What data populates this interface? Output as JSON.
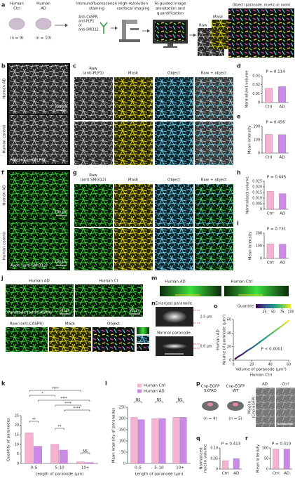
{
  "panel_letters": [
    "a",
    "b",
    "c",
    "d",
    "e",
    "f",
    "g",
    "h",
    "i",
    "j",
    "k",
    "l",
    "m",
    "n",
    "o",
    "p",
    "q",
    "r"
  ],
  "a": {
    "ctrl": [
      "Human",
      "Ctrl"
    ],
    "ctrl_n": "(n = 9)",
    "ad": [
      "Human",
      "AD"
    ],
    "ad_n": "(n = 10)",
    "staining": [
      "Immunofluorescence",
      "staining"
    ],
    "antibodies": [
      "Anti-CASPR,",
      "anti-PLP1",
      "or",
      "anti-SMI312"
    ],
    "imaging": [
      "High-resolution",
      "confocal imaging"
    ],
    "ai": [
      "AI-guided image",
      "annotation and",
      "quantification"
    ],
    "raw": "Raw",
    "mask": "Mask",
    "object": "Object (paranode, myelin or axon)"
  },
  "b": {
    "ad": "Human AD",
    "ctrl": "Human control",
    "stain": "Myelin (anti-PLP1)",
    "scale": "200 μm"
  },
  "c": {
    "columns": [
      [
        "Raw",
        "(anti-PLP1)"
      ],
      [
        "Mask"
      ],
      [
        "Object"
      ],
      [
        "Raw + object"
      ]
    ]
  },
  "f": {
    "ad": "Human AD",
    "ctrl": "Human control",
    "stain": "Axon (anti-SMI312)",
    "scales": [
      "200 μm",
      "200 μm"
    ]
  },
  "g": {
    "columns": [
      [
        "Raw",
        "(anti-SMI312)"
      ],
      [
        "Mask"
      ],
      [
        "Object"
      ],
      [
        "Raw + object"
      ]
    ]
  },
  "j": {
    "ad": "Human AD",
    "ctrl": "Human Ct",
    "stain": "Paranode (anti-CASPR)",
    "scales": [
      "50 μm",
      "50 μm"
    ],
    "row2": [
      "Raw (anti-CASPR)",
      "Mask",
      "Object"
    ]
  },
  "m": {
    "ad": "Human AD",
    "ctrl": "Human Ctrl"
  },
  "n": {
    "enlarged": "Enlarged paranode",
    "enlarged_size": "2.5 μm",
    "normal": "Normal paranode",
    "normal_size": "0.6 μm"
  },
  "p": {
    "mice": [
      [
        "Cnp-EGFP",
        "5XFAD"
      ],
      [
        "Cnp-EGFP",
        "WT"
      ]
    ],
    "n": [
      "(n = 4)",
      "(n = 5)"
    ],
    "images": [
      "AD",
      "Ctrl"
    ],
    "stain": [
      "Myelin",
      "(Cnp-EGFP)"
    ]
  },
  "chart_data": [
    {
      "type": "bar",
      "ylabel": "Normalized volume",
      "annotation": "P = 0.114",
      "categories": [
        "Ctrl",
        "AD"
      ],
      "values": [
        0.016,
        0.018
      ],
      "colors": [
        "#f5b3cf",
        "#c98be6"
      ],
      "ylim": [
        0,
        0.03
      ],
      "yticks": [
        0,
        0.01,
        0.02,
        0.03
      ]
    },
    {
      "type": "bar",
      "ylabel": "Mean intensity",
      "annotation": "P = 0.456",
      "categories": [
        "Ctrl",
        "AD"
      ],
      "values": [
        140,
        138
      ],
      "colors": [
        "#f5b3cf",
        "#c98be6"
      ],
      "ylim": [
        0,
        200
      ],
      "yticks": [
        0,
        100,
        200
      ]
    },
    {
      "type": "bar",
      "ylabel": "Normalized volume",
      "annotation": "P = 0.445",
      "categories": [
        "Ctrl",
        "AD"
      ],
      "values": [
        0.016,
        0.014
      ],
      "colors": [
        "#f5b3cf",
        "#c98be6"
      ],
      "ylim": [
        0,
        0.025
      ],
      "yticks": [
        0,
        0.005,
        {
          "value": 0.01,
          "label": "0.010"
        },
        0.015,
        {
          "value": 0.02,
          "label": "0.020"
        },
        0.025
      ]
    },
    {
      "type": "bar",
      "ylabel": "Mean intensity",
      "annotation": "P = 0.731",
      "categories": [
        "Ctrl",
        "AD"
      ],
      "values": [
        115,
        113
      ],
      "colors": [
        "#f5b3cf",
        "#c98be6"
      ],
      "ylim": [
        0,
        200
      ],
      "yticks": [
        0,
        100,
        200
      ]
    },
    {
      "type": "grouped_bar",
      "ylabel": "Quantity of paranodes",
      "xlabel": "Length of paranode (μm)",
      "categories": [
        "0–5",
        "5–10",
        "10+"
      ],
      "series": [
        {
          "color": "#f5b3cf",
          "values": [
            16,
            10,
            0.8
          ]
        },
        {
          "color": "#c98be6",
          "values": [
            9,
            7,
            0.5
          ]
        }
      ],
      "ylim": [
        0,
        25
      ],
      "yticks": [
        0,
        5,
        10,
        15,
        20,
        25
      ],
      "significance": [
        "**",
        "****",
        "*",
        "****",
        "****",
        "**",
        "****",
        "NS"
      ]
    },
    {
      "type": "grouped_bar",
      "ylabel": "Mean intensity of paranodes",
      "xlabel": "Length of paranode (μm)",
      "categories": [
        "0–5",
        "5–10",
        "10+"
      ],
      "series": [
        {
          "name": "Human Ctrl",
          "color": "#f5b3cf",
          "values": [
            205,
            200,
            205
          ]
        },
        {
          "name": "Human AD",
          "color": "#c98be6",
          "values": [
            195,
            200,
            205
          ]
        }
      ],
      "ylim": [
        0,
        250
      ],
      "yticks": [
        0,
        50,
        100,
        150,
        200,
        250
      ],
      "significance": [
        "NS",
        "NS",
        "NS"
      ]
    },
    {
      "type": "line",
      "legend_title": "Quantile",
      "colorbar_lim": [
        0,
        100
      ],
      "colorbar_ticks": [
        25,
        50,
        75,
        100
      ],
      "colormap": [
        "#440154",
        "#3b528b",
        "#21918c",
        "#5ec962",
        "#fde725"
      ],
      "ylabel_group": "Human AD",
      "ylabel": "Volume of paranode (μm³)",
      "xlabel": "Volume of paranode (μm³)",
      "xlabel_group": "Human Ctrl",
      "annotation": "P < 0.0001",
      "x": [
        2,
        5,
        10,
        15,
        20,
        25,
        30,
        35,
        40,
        45,
        50,
        55,
        60
      ],
      "y": [
        2,
        5,
        9,
        14,
        18,
        23,
        28,
        33,
        38,
        43,
        48,
        53,
        58
      ],
      "xlim": [
        0,
        60
      ],
      "ylim": [
        0,
        60
      ],
      "xticks": [
        0,
        20,
        40,
        60
      ],
      "yticks": [
        0,
        20,
        40,
        60
      ]
    },
    {
      "type": "bar",
      "ylabel": [
        "Normalized",
        "myelin volume"
      ],
      "annotation": "P = 0.413",
      "categories": [
        "Ctrl",
        "AD"
      ],
      "values": [
        0.04,
        0.05
      ],
      "colors": [
        "#f5b3cf",
        "#c98be6"
      ],
      "ylim": [
        0,
        0.1
      ],
      "yticks": [
        0,
        0.05,
        {
          "value": 0.1,
          "label": "0.10"
        }
      ]
    },
    {
      "type": "bar",
      "ylabel": "Mean intensity",
      "annotation": "P = 0.310",
      "categories": [
        "Ctrl",
        "AD"
      ],
      "values": [
        95,
        95
      ],
      "colors": [
        "#f5b3cf",
        "#c98be6"
      ],
      "ylim": [
        0,
        100
      ],
      "yticks": [
        0,
        50,
        100
      ]
    }
  ]
}
